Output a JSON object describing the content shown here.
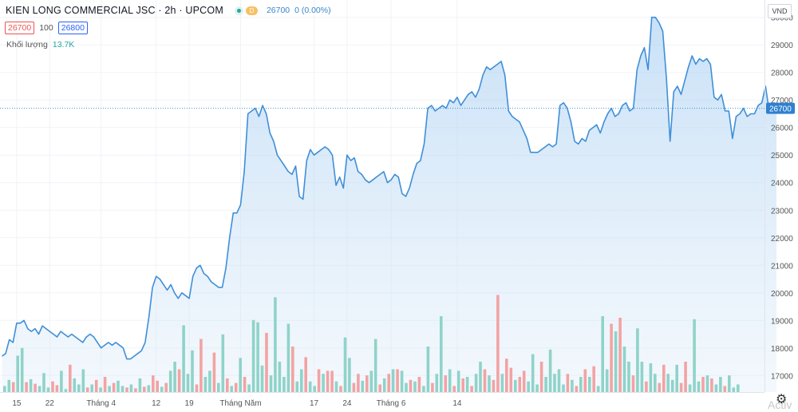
{
  "header": {
    "title": "KIEN LONG COMMERCIAL JSC · 2h · UPCOM",
    "badge": "D",
    "price": "26700",
    "change": "0 (0.00%)"
  },
  "quote": {
    "bid": "26700",
    "spread": "100",
    "ask": "26800"
  },
  "volume": {
    "label": "Khối lượng",
    "value": "13.7K"
  },
  "currency": "VND",
  "watermark": "Activ",
  "icons": {
    "status": "market-status-dot-icon",
    "settings": "settings-gear-icon"
  },
  "colors": {
    "line": "#3f8fd8",
    "up": "#26a69a",
    "down": "#ef5350",
    "last_price_bg": "#2f80d0"
  },
  "chart_data": {
    "type": "area",
    "title": "KIEN LONG COMMERCIAL JSC · 2h · UPCOM",
    "ylim": [
      16400,
      30600
    ],
    "yticks": [
      17000,
      18000,
      19000,
      20000,
      21000,
      22000,
      23000,
      24000,
      25000,
      26000,
      27000,
      28000,
      29000,
      30000
    ],
    "xticks": [
      {
        "label": "15",
        "x": 4
      },
      {
        "label": "22",
        "x": 13
      },
      {
        "label": "Tháng 4",
        "x": 27
      },
      {
        "label": "12",
        "x": 42
      },
      {
        "label": "19",
        "x": 51
      },
      {
        "label": "Tháng Năm",
        "x": 65
      },
      {
        "label": "17",
        "x": 85
      },
      {
        "label": "24",
        "x": 94
      },
      {
        "label": "Tháng 6",
        "x": 106
      },
      {
        "label": "14",
        "x": 124
      }
    ],
    "last_price": 26700,
    "price": [
      17700,
      17800,
      18300,
      18200,
      18900,
      18900,
      19000,
      18700,
      18600,
      18700,
      18500,
      18800,
      18700,
      18600,
      18500,
      18400,
      18600,
      18500,
      18400,
      18500,
      18400,
      18300,
      18200,
      18400,
      18500,
      18400,
      18200,
      18000,
      18100,
      18200,
      18100,
      18200,
      18100,
      18000,
      17600,
      17600,
      17700,
      17800,
      17900,
      18200,
      19100,
      20200,
      20600,
      20500,
      20300,
      20100,
      20300,
      20000,
      19800,
      20000,
      19900,
      19800,
      20600,
      20900,
      21000,
      20700,
      20600,
      20400,
      20300,
      20200,
      20200,
      20900,
      22000,
      22900,
      22900,
      23200,
      24400,
      26500,
      26600,
      26700,
      26400,
      26800,
      26500,
      25800,
      25500,
      25000,
      24800,
      24600,
      24400,
      24300,
      24600,
      23500,
      23400,
      24800,
      25200,
      25000,
      25100,
      25200,
      25300,
      25200,
      25000,
      23900,
      24200,
      23800,
      25000,
      24800,
      24900,
      24400,
      24300,
      24100,
      24000,
      24100,
      24200,
      24300,
      24400,
      24000,
      24100,
      24300,
      24200,
      23600,
      23500,
      23800,
      24300,
      24700,
      24800,
      25400,
      26700,
      26800,
      26600,
      26700,
      26800,
      26700,
      27000,
      26900,
      27100,
      26800,
      27000,
      27200,
      27300,
      27100,
      27400,
      27900,
      28200,
      28100,
      28200,
      28300,
      28400,
      27900,
      26600,
      26400,
      26300,
      26200,
      25900,
      25600,
      25100,
      25100,
      25100,
      25200,
      25300,
      25400,
      25300,
      25400,
      26800,
      26900,
      26700,
      26200,
      25500,
      25400,
      25600,
      25500,
      25900,
      26000,
      26100,
      25800,
      26200,
      26500,
      26700,
      26400,
      26500,
      26800,
      26900,
      26600,
      26700,
      28100,
      28600,
      28900,
      28100,
      30000,
      30000,
      29800,
      29500,
      27800,
      25500,
      27300,
      27500,
      27200,
      27700,
      28200,
      28600,
      28300,
      28500,
      28400,
      28500,
      28300,
      27100,
      27000,
      27200,
      26600,
      26600,
      25600,
      26400,
      26500,
      26700,
      26400,
      26500,
      26500,
      26800,
      26900,
      27500,
      26600,
      26700,
      26700
    ],
    "volume_bars": [
      {
        "x": 0,
        "v": 8,
        "c": "u"
      },
      {
        "x": 1,
        "v": 16,
        "c": "u"
      },
      {
        "x": 2,
        "v": 13,
        "c": "d"
      },
      {
        "x": 3,
        "v": 48,
        "c": "u"
      },
      {
        "x": 4,
        "v": 58,
        "c": "u"
      },
      {
        "x": 5,
        "v": 13,
        "c": "d"
      },
      {
        "x": 6,
        "v": 17,
        "c": "u"
      },
      {
        "x": 7,
        "v": 11,
        "c": "d"
      },
      {
        "x": 8,
        "v": 8,
        "c": "u"
      },
      {
        "x": 9,
        "v": 25,
        "c": "u"
      },
      {
        "x": 10,
        "v": 6,
        "c": "u"
      },
      {
        "x": 11,
        "v": 14,
        "c": "d"
      },
      {
        "x": 12,
        "v": 9,
        "c": "d"
      },
      {
        "x": 13,
        "v": 28,
        "c": "u"
      },
      {
        "x": 14,
        "v": 4,
        "c": "u"
      },
      {
        "x": 15,
        "v": 36,
        "c": "d"
      },
      {
        "x": 16,
        "v": 18,
        "c": "u"
      },
      {
        "x": 17,
        "v": 10,
        "c": "u"
      },
      {
        "x": 18,
        "v": 30,
        "c": "u"
      },
      {
        "x": 19,
        "v": 6,
        "c": "d"
      },
      {
        "x": 20,
        "v": 10,
        "c": "u"
      },
      {
        "x": 21,
        "v": 16,
        "c": "d"
      },
      {
        "x": 22,
        "v": 6,
        "c": "u"
      },
      {
        "x": 23,
        "v": 20,
        "c": "d"
      },
      {
        "x": 24,
        "v": 8,
        "c": "u"
      },
      {
        "x": 25,
        "v": 12,
        "c": "d"
      },
      {
        "x": 26,
        "v": 15,
        "c": "u"
      },
      {
        "x": 27,
        "v": 8,
        "c": "u"
      },
      {
        "x": 28,
        "v": 6,
        "c": "d"
      },
      {
        "x": 29,
        "v": 10,
        "c": "u"
      },
      {
        "x": 30,
        "v": 5,
        "c": "d"
      },
      {
        "x": 31,
        "v": 18,
        "c": "u"
      },
      {
        "x": 32,
        "v": 7,
        "c": "d"
      },
      {
        "x": 33,
        "v": 9,
        "c": "u"
      },
      {
        "x": 34,
        "v": 22,
        "c": "d"
      },
      {
        "x": 35,
        "v": 15,
        "c": "d"
      },
      {
        "x": 36,
        "v": 7,
        "c": "u"
      },
      {
        "x": 37,
        "v": 12,
        "c": "d"
      },
      {
        "x": 38,
        "v": 28,
        "c": "u"
      },
      {
        "x": 39,
        "v": 40,
        "c": "u"
      },
      {
        "x": 40,
        "v": 30,
        "c": "d"
      },
      {
        "x": 41,
        "v": 88,
        "c": "u"
      },
      {
        "x": 42,
        "v": 24,
        "c": "u"
      },
      {
        "x": 43,
        "v": 55,
        "c": "u"
      },
      {
        "x": 44,
        "v": 10,
        "c": "d"
      },
      {
        "x": 45,
        "v": 70,
        "c": "d"
      },
      {
        "x": 46,
        "v": 20,
        "c": "u"
      },
      {
        "x": 47,
        "v": 28,
        "c": "u"
      },
      {
        "x": 48,
        "v": 52,
        "c": "d"
      },
      {
        "x": 49,
        "v": 12,
        "c": "u"
      },
      {
        "x": 50,
        "v": 76,
        "c": "u"
      },
      {
        "x": 51,
        "v": 18,
        "c": "d"
      },
      {
        "x": 52,
        "v": 8,
        "c": "u"
      },
      {
        "x": 53,
        "v": 12,
        "c": "d"
      },
      {
        "x": 54,
        "v": 45,
        "c": "u"
      },
      {
        "x": 55,
        "v": 20,
        "c": "d"
      },
      {
        "x": 56,
        "v": 10,
        "c": "u"
      },
      {
        "x": 57,
        "v": 95,
        "c": "u"
      },
      {
        "x": 58,
        "v": 92,
        "c": "u"
      },
      {
        "x": 59,
        "v": 35,
        "c": "u"
      },
      {
        "x": 60,
        "v": 78,
        "c": "d"
      },
      {
        "x": 61,
        "v": 22,
        "c": "u"
      },
      {
        "x": 62,
        "v": 125,
        "c": "u"
      },
      {
        "x": 63,
        "v": 40,
        "c": "u"
      },
      {
        "x": 64,
        "v": 20,
        "c": "u"
      },
      {
        "x": 65,
        "v": 90,
        "c": "u"
      },
      {
        "x": 66,
        "v": 60,
        "c": "d"
      },
      {
        "x": 67,
        "v": 14,
        "c": "u"
      },
      {
        "x": 68,
        "v": 30,
        "c": "u"
      },
      {
        "x": 69,
        "v": 46,
        "c": "d"
      },
      {
        "x": 70,
        "v": 14,
        "c": "u"
      },
      {
        "x": 71,
        "v": 8,
        "c": "u"
      },
      {
        "x": 72,
        "v": 30,
        "c": "d"
      },
      {
        "x": 73,
        "v": 24,
        "c": "u"
      },
      {
        "x": 74,
        "v": 28,
        "c": "d"
      },
      {
        "x": 75,
        "v": 28,
        "c": "d"
      },
      {
        "x": 76,
        "v": 14,
        "c": "u"
      },
      {
        "x": 77,
        "v": 8,
        "c": "d"
      },
      {
        "x": 78,
        "v": 72,
        "c": "u"
      },
      {
        "x": 79,
        "v": 45,
        "c": "u"
      },
      {
        "x": 80,
        "v": 12,
        "c": "d"
      },
      {
        "x": 81,
        "v": 24,
        "c": "d"
      },
      {
        "x": 82,
        "v": 15,
        "c": "u"
      },
      {
        "x": 83,
        "v": 22,
        "c": "d"
      },
      {
        "x": 84,
        "v": 28,
        "c": "u"
      },
      {
        "x": 85,
        "v": 70,
        "c": "u"
      },
      {
        "x": 86,
        "v": 10,
        "c": "d"
      },
      {
        "x": 87,
        "v": 18,
        "c": "u"
      },
      {
        "x": 88,
        "v": 24,
        "c": "d"
      },
      {
        "x": 89,
        "v": 30,
        "c": "u"
      },
      {
        "x": 90,
        "v": 30,
        "c": "d"
      },
      {
        "x": 91,
        "v": 28,
        "c": "u"
      },
      {
        "x": 92,
        "v": 12,
        "c": "u"
      },
      {
        "x": 93,
        "v": 16,
        "c": "d"
      },
      {
        "x": 94,
        "v": 14,
        "c": "u"
      },
      {
        "x": 95,
        "v": 20,
        "c": "d"
      },
      {
        "x": 96,
        "v": 8,
        "c": "u"
      },
      {
        "x": 97,
        "v": 60,
        "c": "u"
      },
      {
        "x": 98,
        "v": 12,
        "c": "d"
      },
      {
        "x": 99,
        "v": 24,
        "c": "u"
      },
      {
        "x": 100,
        "v": 100,
        "c": "u"
      },
      {
        "x": 101,
        "v": 22,
        "c": "d"
      },
      {
        "x": 102,
        "v": 30,
        "c": "u"
      },
      {
        "x": 103,
        "v": 8,
        "c": "d"
      },
      {
        "x": 104,
        "v": 28,
        "c": "u"
      },
      {
        "x": 105,
        "v": 18,
        "c": "d"
      },
      {
        "x": 106,
        "v": 20,
        "c": "u"
      },
      {
        "x": 107,
        "v": 8,
        "c": "d"
      },
      {
        "x": 108,
        "v": 24,
        "c": "u"
      },
      {
        "x": 109,
        "v": 40,
        "c": "u"
      },
      {
        "x": 110,
        "v": 30,
        "c": "d"
      },
      {
        "x": 111,
        "v": 22,
        "c": "u"
      },
      {
        "x": 112,
        "v": 16,
        "c": "d"
      },
      {
        "x": 113,
        "v": 128,
        "c": "d"
      },
      {
        "x": 114,
        "v": 24,
        "c": "u"
      },
      {
        "x": 115,
        "v": 44,
        "c": "d"
      },
      {
        "x": 116,
        "v": 32,
        "c": "d"
      },
      {
        "x": 117,
        "v": 16,
        "c": "u"
      },
      {
        "x": 118,
        "v": 20,
        "c": "d"
      },
      {
        "x": 119,
        "v": 28,
        "c": "d"
      },
      {
        "x": 120,
        "v": 14,
        "c": "u"
      },
      {
        "x": 121,
        "v": 50,
        "c": "u"
      },
      {
        "x": 122,
        "v": 10,
        "c": "u"
      },
      {
        "x": 123,
        "v": 40,
        "c": "d"
      },
      {
        "x": 124,
        "v": 20,
        "c": "u"
      },
      {
        "x": 125,
        "v": 56,
        "c": "u"
      },
      {
        "x": 126,
        "v": 24,
        "c": "u"
      },
      {
        "x": 127,
        "v": 30,
        "c": "u"
      },
      {
        "x": 128,
        "v": 10,
        "c": "u"
      },
      {
        "x": 129,
        "v": 24,
        "c": "d"
      },
      {
        "x": 130,
        "v": 16,
        "c": "u"
      },
      {
        "x": 131,
        "v": 8,
        "c": "d"
      },
      {
        "x": 132,
        "v": 20,
        "c": "u"
      },
      {
        "x": 133,
        "v": 30,
        "c": "d"
      },
      {
        "x": 134,
        "v": 20,
        "c": "u"
      },
      {
        "x": 135,
        "v": 34,
        "c": "d"
      },
      {
        "x": 136,
        "v": 8,
        "c": "u"
      },
      {
        "x": 137,
        "v": 100,
        "c": "u"
      },
      {
        "x": 138,
        "v": 30,
        "c": "u"
      },
      {
        "x": 139,
        "v": 90,
        "c": "d"
      },
      {
        "x": 140,
        "v": 80,
        "c": "u"
      },
      {
        "x": 141,
        "v": 98,
        "c": "d"
      },
      {
        "x": 142,
        "v": 60,
        "c": "u"
      },
      {
        "x": 143,
        "v": 40,
        "c": "u"
      },
      {
        "x": 144,
        "v": 22,
        "c": "d"
      },
      {
        "x": 145,
        "v": 84,
        "c": "u"
      },
      {
        "x": 146,
        "v": 40,
        "c": "u"
      },
      {
        "x": 147,
        "v": 14,
        "c": "d"
      },
      {
        "x": 148,
        "v": 38,
        "c": "u"
      },
      {
        "x": 149,
        "v": 24,
        "c": "u"
      },
      {
        "x": 150,
        "v": 12,
        "c": "d"
      },
      {
        "x": 151,
        "v": 36,
        "c": "d"
      },
      {
        "x": 152,
        "v": 24,
        "c": "u"
      },
      {
        "x": 153,
        "v": 16,
        "c": "u"
      },
      {
        "x": 154,
        "v": 36,
        "c": "u"
      },
      {
        "x": 155,
        "v": 12,
        "c": "d"
      },
      {
        "x": 156,
        "v": 40,
        "c": "d"
      },
      {
        "x": 157,
        "v": 10,
        "c": "u"
      },
      {
        "x": 158,
        "v": 96,
        "c": "u"
      },
      {
        "x": 159,
        "v": 14,
        "c": "u"
      },
      {
        "x": 160,
        "v": 20,
        "c": "d"
      },
      {
        "x": 161,
        "v": 22,
        "c": "u"
      },
      {
        "x": 162,
        "v": 18,
        "c": "d"
      },
      {
        "x": 163,
        "v": 10,
        "c": "u"
      },
      {
        "x": 164,
        "v": 20,
        "c": "u"
      },
      {
        "x": 165,
        "v": 8,
        "c": "d"
      },
      {
        "x": 166,
        "v": 22,
        "c": "u"
      },
      {
        "x": 167,
        "v": 6,
        "c": "u"
      },
      {
        "x": 168,
        "v": 10,
        "c": "u"
      }
    ]
  }
}
